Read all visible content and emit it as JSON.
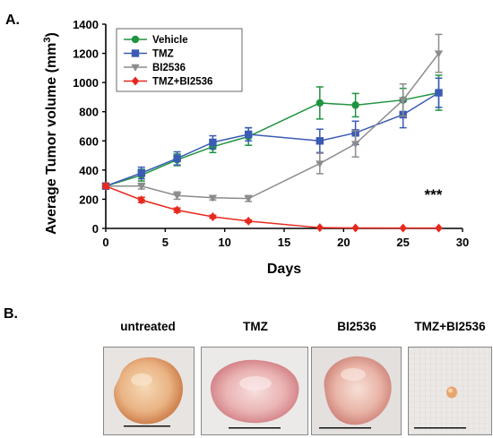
{
  "panel_a_label": "A.",
  "panel_b_label": "B.",
  "chart_data": {
    "type": "line",
    "xlabel": "Days",
    "ylabel": "Average Tumor volume (mm",
    "ylabel_sup": "3",
    "ylabel_close": ")",
    "xlim": [
      0,
      30
    ],
    "ylim": [
      0,
      1400
    ],
    "xticks": [
      "0",
      "5",
      "10",
      "15",
      "20",
      "25",
      "30"
    ],
    "yticks": [
      "0",
      "200",
      "400",
      "600",
      "800",
      "1000",
      "1200",
      "1400"
    ],
    "grid": false,
    "legend_position": "top-left",
    "annotation": "***",
    "series": [
      {
        "name": "Vehicle",
        "color": "#1f9440",
        "marker": "circle",
        "x": [
          0,
          3,
          6,
          9,
          12,
          18,
          21,
          25,
          28
        ],
        "y": [
          290,
          365,
          470,
          560,
          630,
          860,
          845,
          880,
          930
        ],
        "err": [
          20,
          40,
          40,
          40,
          60,
          110,
          80,
          80,
          120
        ]
      },
      {
        "name": "TMZ",
        "color": "#3a5bb5",
        "marker": "square",
        "x": [
          0,
          3,
          6,
          9,
          12,
          18,
          21,
          25,
          28
        ],
        "y": [
          290,
          380,
          480,
          590,
          645,
          600,
          655,
          780,
          930
        ],
        "err": [
          20,
          40,
          45,
          45,
          45,
          80,
          80,
          90,
          100
        ]
      },
      {
        "name": "BI2536",
        "color": "#8c8c8c",
        "marker": "triangle-down",
        "x": [
          0,
          3,
          6,
          9,
          12,
          18,
          21,
          25,
          28
        ],
        "y": [
          290,
          290,
          225,
          210,
          205,
          445,
          580,
          880,
          1200
        ],
        "err": [
          15,
          20,
          25,
          15,
          20,
          70,
          90,
          110,
          130
        ]
      },
      {
        "name": "TMZ+BI2536",
        "color": "#e8281e",
        "marker": "diamond",
        "x": [
          0,
          3,
          6,
          9,
          12,
          18,
          21,
          25,
          28
        ],
        "y": [
          290,
          195,
          125,
          80,
          50,
          5,
          3,
          2,
          2
        ],
        "err": [
          15,
          18,
          15,
          10,
          8,
          3,
          2,
          2,
          2
        ]
      }
    ]
  },
  "photos": [
    {
      "label": "untreated"
    },
    {
      "label": "TMZ"
    },
    {
      "label": "BI2536"
    },
    {
      "label": "TMZ+BI2536"
    }
  ]
}
